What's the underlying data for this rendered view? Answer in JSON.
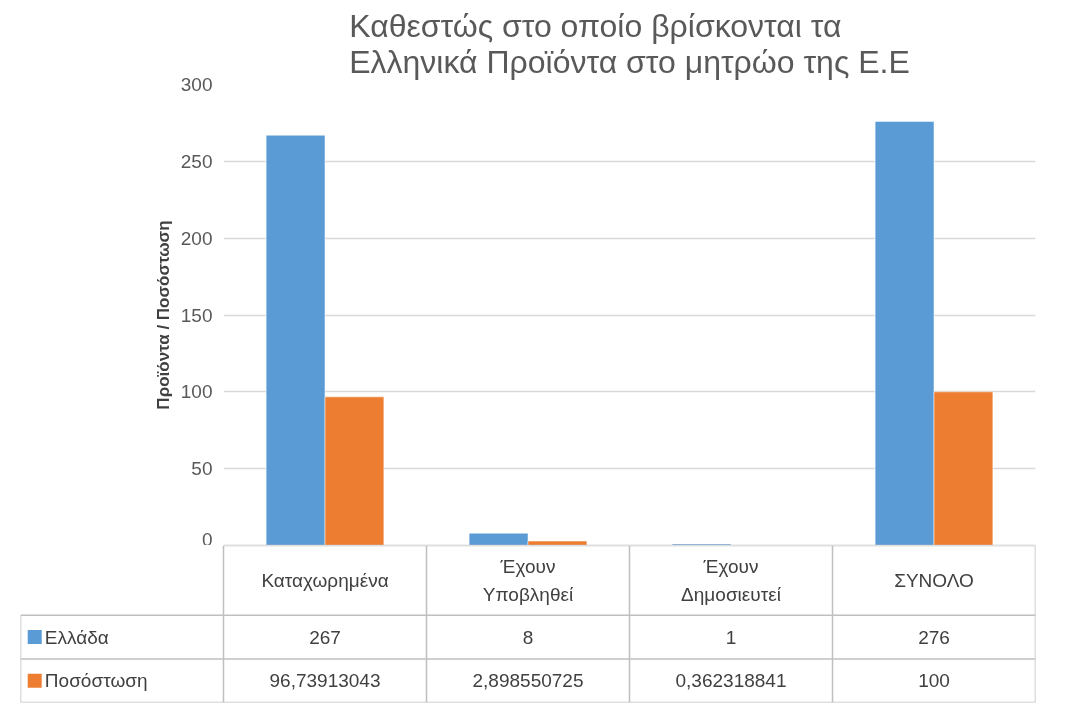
{
  "chart_data": {
    "type": "bar",
    "title": "Καθεστώς στο οποίο βρίσκονται τα Ελληνικά Προϊόντα στο μητρώο της Ε.Ε",
    "ylabel": "Προϊόντα / Ποσόστωση",
    "categories": [
      "Καταχωρημένα",
      "Έχουν Υποβληθεί",
      "Έχουν Δημοσιευτεί",
      "ΣΥΝΟΛΟ"
    ],
    "series": [
      {
        "name": "Ελλάδα",
        "color": "#5b9bd5",
        "values": [
          267,
          8,
          1,
          276
        ],
        "value_labels": [
          "267",
          "8",
          "1",
          "276"
        ]
      },
      {
        "name": "Ποσόστωση",
        "color": "#ed7d31",
        "values": [
          96.73913043,
          2.898550725,
          0.362318841,
          100
        ],
        "value_labels": [
          "96,73913043",
          "2,898550725",
          "0,362318841",
          "100"
        ]
      }
    ],
    "ylim": [
      0,
      300
    ],
    "yticks": [
      0,
      50,
      100,
      150,
      200,
      250,
      300
    ],
    "grid": "y",
    "legend": "bottom"
  }
}
